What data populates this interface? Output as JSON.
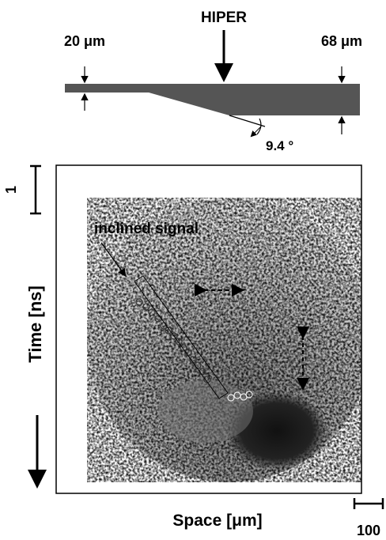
{
  "target": {
    "beam_label": "HIPER",
    "thin_label": "20 μm",
    "thick_label": "68 μm",
    "angle_label": "9.4 °"
  },
  "image": {
    "time_scale_label": "1",
    "signal_label": "inclined signal",
    "y_axis_label": "Time [ns]",
    "x_axis_label": "Space [μm]",
    "space_scale_label": "100"
  }
}
